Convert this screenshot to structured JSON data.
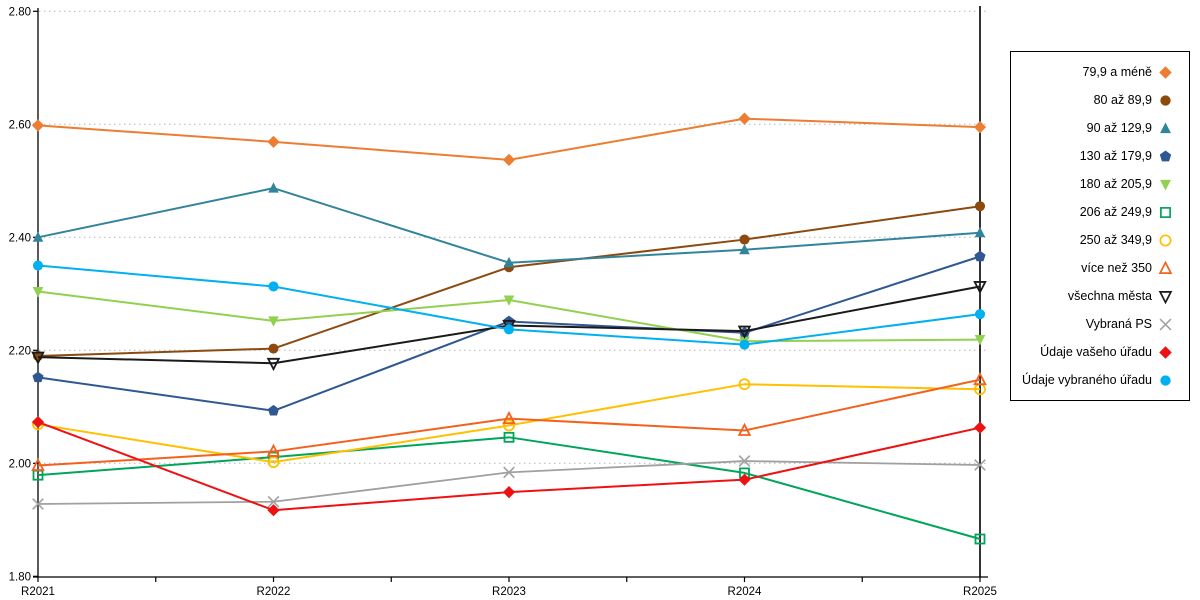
{
  "chart_data": {
    "type": "line",
    "title": "",
    "xlabel": "",
    "ylabel": "",
    "categories": [
      "R2021",
      "R2022",
      "R2023",
      "R2024",
      "R2025"
    ],
    "y_axis": {
      "min": 1.8,
      "max": 2.8,
      "step": 0.2,
      "tick_labels": [
        "1.80",
        "2.00",
        "2.20",
        "2.40",
        "2.60",
        "2.80"
      ]
    },
    "grid": "horizontal dotted gridlines",
    "legend_position": "right",
    "highlight_vertical_line_at": "R2025",
    "series": [
      {
        "name": "79,9 a méně",
        "marker": "diamond",
        "fill": "solid",
        "color": "#ED7D31",
        "values": [
          2.598,
          2.569,
          2.537,
          2.61,
          2.595
        ]
      },
      {
        "name": "80 až 89,9",
        "marker": "circle",
        "fill": "solid",
        "color": "#8C4A0F",
        "values": [
          2.19,
          2.203,
          2.347,
          2.396,
          2.455
        ]
      },
      {
        "name": "90 až 129,9",
        "marker": "triangle-up",
        "fill": "solid",
        "color": "#31849B",
        "values": [
          2.4,
          2.487,
          2.355,
          2.378,
          2.408
        ]
      },
      {
        "name": "130 až 179,9",
        "marker": "pentagon",
        "fill": "solid",
        "color": "#2F5893",
        "values": [
          2.152,
          2.093,
          2.251,
          2.231,
          2.366
        ]
      },
      {
        "name": "180 až 205,9",
        "marker": "triangle-down",
        "fill": "solid",
        "color": "#92D050",
        "values": [
          2.304,
          2.252,
          2.289,
          2.216,
          2.219
        ]
      },
      {
        "name": "206 až 249,9",
        "marker": "square",
        "fill": "open",
        "color": "#00A55A",
        "values": [
          1.979,
          2.011,
          2.046,
          1.983,
          1.866
        ]
      },
      {
        "name": "250 až 349,9",
        "marker": "circle",
        "fill": "open",
        "color": "#FFC000",
        "values": [
          2.069,
          2.002,
          2.067,
          2.14,
          2.131
        ]
      },
      {
        "name": "více než 350",
        "marker": "triangle-up",
        "fill": "open",
        "color": "#F4611C",
        "values": [
          1.996,
          2.021,
          2.079,
          2.058,
          2.148
        ]
      },
      {
        "name": "všechna města",
        "marker": "triangle-down",
        "fill": "open",
        "color": "#1A1A1A",
        "values": [
          2.188,
          2.177,
          2.244,
          2.234,
          2.313
        ]
      },
      {
        "name": "Vybraná PS",
        "marker": "x",
        "fill": "open",
        "color": "#A0A0A0",
        "values": [
          1.928,
          1.932,
          1.984,
          2.004,
          1.997
        ]
      },
      {
        "name": "Údaje vašeho úřadu",
        "marker": "diamond",
        "fill": "solid",
        "color": "#EE1111",
        "values": [
          2.073,
          1.917,
          1.949,
          1.971,
          2.063
        ]
      },
      {
        "name": "Údaje vybraného úřadu",
        "marker": "circle",
        "fill": "solid",
        "color": "#00B0F0",
        "values": [
          2.35,
          2.313,
          2.237,
          2.21,
          2.264
        ]
      }
    ]
  },
  "colors": {
    "axis": "#000000",
    "gridline": "#B5B5B5",
    "background": "#FFFFFF"
  }
}
